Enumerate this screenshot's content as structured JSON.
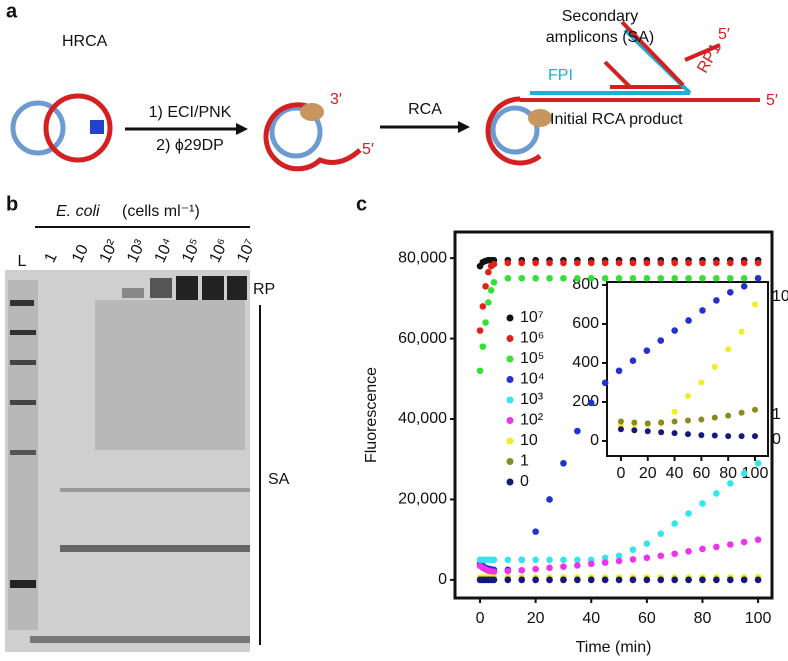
{
  "panel_a": {
    "label": "a",
    "title": "HRCA",
    "step1": "1) ECI/PNK",
    "step2": "2) ϕ29DP",
    "three_prime": "3′",
    "five_prime_1": "5′",
    "rca": "RCA",
    "sa_line1": "Secondary",
    "sa_line2": "amplicons (SA)",
    "five_prime_2": "5′",
    "rp1": "RP1",
    "fpi": "FPI",
    "five_prime_3": "5′",
    "initial_product": "Initial RCA product"
  },
  "panel_b": {
    "label": "b",
    "species": "E. coli",
    "unit": "(cells ml⁻¹)",
    "lanes": [
      "L",
      "1",
      "10",
      "10²",
      "10³",
      "10⁴",
      "10⁵",
      "10⁶",
      "10⁷"
    ],
    "rp": "RP",
    "sa": "SA"
  },
  "panel_c": {
    "label": "c"
  },
  "chart_data": [
    {
      "type": "scatter",
      "xlabel": "Time (min)",
      "ylabel": "Fluorescence",
      "xlim": [
        -9,
        105
      ],
      "ylim": [
        -4500,
        86500
      ],
      "xticks": [
        0,
        20,
        40,
        60,
        80,
        100
      ],
      "yticks": [
        0,
        {
          "value": 20000,
          "label": "20,000"
        },
        {
          "value": 40000,
          "label": "40,000"
        },
        {
          "value": 60000,
          "label": "60,000"
        },
        {
          "value": 80000,
          "label": "80,000"
        }
      ],
      "x": [
        0,
        1,
        2,
        3,
        4,
        5,
        10,
        15,
        20,
        25,
        30,
        35,
        40,
        45,
        50,
        55,
        60,
        65,
        70,
        75,
        80,
        85,
        90,
        95,
        100
      ],
      "series": [
        {
          "name": "10⁷",
          "color": "#111111",
          "values": [
            78000,
            79000,
            79300,
            79500,
            79500,
            79500,
            79500,
            79500,
            79500,
            79500,
            79500,
            79500,
            79500,
            79500,
            79500,
            79500,
            79500,
            79500,
            79500,
            79500,
            79500,
            79500,
            79500,
            79500,
            79500
          ]
        },
        {
          "name": "10⁶",
          "color": "#e0201b",
          "values": [
            62000,
            68000,
            73000,
            76500,
            78000,
            78500,
            78800,
            78800,
            78800,
            78800,
            78800,
            78800,
            78800,
            78800,
            78800,
            78800,
            78800,
            78800,
            78800,
            78800,
            78800,
            78800,
            78800,
            78800,
            78800
          ]
        },
        {
          "name": "10⁵",
          "color": "#33e033",
          "values": [
            52000,
            58000,
            64000,
            69000,
            72000,
            74000,
            75000,
            75000,
            75000,
            75000,
            75000,
            75000,
            75000,
            75000,
            75000,
            75000,
            75000,
            75000,
            75000,
            75000,
            75000,
            75000,
            75000,
            75000,
            75000
          ]
        },
        {
          "name": "10⁴",
          "color": "#2233cc",
          "values": [
            4000,
            3500,
            3000,
            2800,
            2600,
            2500,
            2500,
            5000,
            12000,
            20000,
            29000,
            37000,
            44000,
            49000,
            52000,
            54500,
            57000,
            59500,
            62000,
            64500,
            67000,
            69500,
            71500,
            73000,
            75000
          ]
        },
        {
          "name": "10³",
          "color": "#33e6ee",
          "values": [
            5000,
            5000,
            5000,
            5000,
            5000,
            5000,
            5000,
            5000,
            5000,
            5000,
            5000,
            5000,
            5000,
            5500,
            6000,
            7500,
            9000,
            11500,
            14000,
            16500,
            19000,
            21500,
            24000,
            26500,
            29000
          ]
        },
        {
          "name": "10²",
          "color": "#ee33ee",
          "values": [
            3500,
            3000,
            2600,
            2300,
            2100,
            2000,
            2200,
            2400,
            2700,
            3000,
            3300,
            3600,
            4000,
            4300,
            4700,
            5100,
            5500,
            6000,
            6500,
            7100,
            7700,
            8200,
            8800,
            9400,
            10000
          ]
        },
        {
          "name": "10",
          "color": "#eeee22",
          "values": [
            600,
            600,
            600,
            600,
            600,
            600,
            600,
            600,
            600,
            600,
            600,
            600,
            600,
            600,
            600,
            600,
            600,
            600,
            600,
            600,
            620,
            640,
            660,
            680,
            700
          ]
        },
        {
          "name": "1",
          "color": "#8a8a1f",
          "values": [
            100,
            100,
            100,
            100,
            100,
            100,
            100,
            100,
            100,
            100,
            100,
            100,
            100,
            100,
            100,
            100,
            100,
            100,
            100,
            100,
            100,
            100,
            100,
            100,
            100
          ]
        },
        {
          "name": "0",
          "color": "#141a7a",
          "values": [
            0,
            0,
            0,
            0,
            0,
            0,
            0,
            0,
            0,
            0,
            0,
            0,
            0,
            0,
            0,
            0,
            0,
            0,
            0,
            0,
            0,
            0,
            0,
            0,
            0
          ]
        }
      ],
      "legend": "left"
    },
    {
      "type": "scatter",
      "xlim": [
        -10.4,
        109.7
      ],
      "ylim": [
        -77,
        815
      ],
      "xticks": [
        0,
        20,
        40,
        60,
        80,
        100
      ],
      "yticks": [
        0,
        200,
        400,
        600,
        800
      ],
      "x": [
        0,
        10,
        20,
        30,
        40,
        50,
        60,
        70,
        80,
        90,
        100
      ],
      "series": [
        {
          "name": "10",
          "color": "#eeee22",
          "values": [
            80,
            85,
            85,
            90,
            150,
            230,
            300,
            380,
            470,
            560,
            700
          ]
        },
        {
          "name": "1",
          "color": "#8a8a1f",
          "values": [
            100,
            95,
            90,
            95,
            100,
            105,
            110,
            120,
            130,
            145,
            160
          ]
        },
        {
          "name": "0",
          "color": "#141a7a",
          "values": [
            60,
            55,
            50,
            45,
            40,
            35,
            30,
            28,
            25,
            25,
            25
          ]
        }
      ]
    }
  ]
}
